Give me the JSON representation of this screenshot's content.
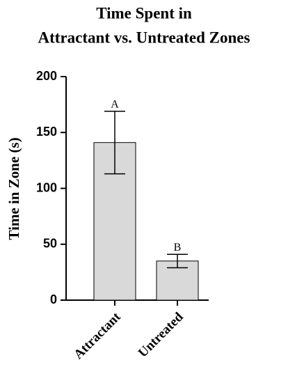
{
  "chart_data": {
    "type": "bar",
    "title": [
      "Time Spent in",
      "Attractant vs. Untreated Zones"
    ],
    "y_label": "Time in Zone (s)",
    "categories": [
      "Attractant",
      "Untreated"
    ],
    "values": [
      141,
      35
    ],
    "errors": [
      28,
      6
    ],
    "annotations": [
      "A",
      "B"
    ],
    "color": "#d9d9d9",
    "ylim": [
      0,
      200
    ],
    "yticks": [
      0,
      50,
      100,
      150,
      200
    ],
    "grid": false
  }
}
